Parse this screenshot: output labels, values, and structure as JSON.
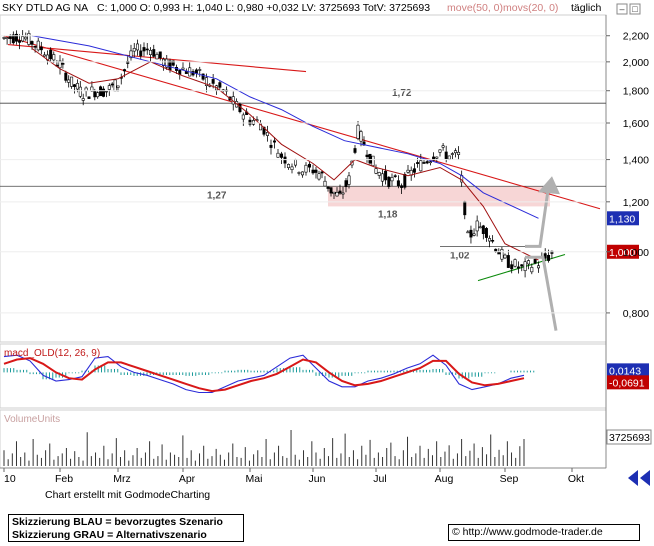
{
  "header": {
    "name": "SKY DTLD AG NA",
    "quote": "C: 1,000  O: 0,993  H: 1,040  L: 0,980  +0,032  LV: 3725693  TotV: 3725693",
    "ma50": "move(50, 0)",
    "ma20": "movs(20, 0)",
    "period": "täglich"
  },
  "colors": {
    "ma50": "#2b2bd8",
    "ma20": "#a01010",
    "resistance": "#d81818",
    "support": "#0b8a0b",
    "zone": "#f7d6d6",
    "scenario_arrow": "#b0b0b0",
    "candle": "#000000",
    "macd": "#2b2bd8",
    "signal": "#d81818",
    "hist": "#1a9a9a"
  },
  "chart_data": [
    {
      "type": "candlestick",
      "title": "SKY DTLD AG NA",
      "x_labels": [
        "10",
        "Feb",
        "Mrz",
        "Apr",
        "Mai",
        "Jun",
        "Jul",
        "Aug",
        "Sep",
        "Okt"
      ],
      "y_ticks": [
        "2,200",
        "2,000",
        "1,800",
        "1,600",
        "1,400",
        "1,200",
        "1,000",
        "0,800"
      ],
      "ylim": [
        0.73,
        2.33
      ],
      "y_scale": "log",
      "close_path": [
        [
          "10",
          2.18
        ],
        [
          "10",
          2.2
        ],
        [
          "10",
          2.1
        ],
        [
          "Feb",
          1.98
        ],
        [
          "Feb",
          1.85
        ],
        [
          "Feb",
          1.78
        ],
        [
          "Feb",
          1.8
        ],
        [
          "Feb",
          1.8
        ],
        [
          "Mrz",
          1.85
        ],
        [
          "Mrz",
          2.08
        ],
        [
          "Mrz",
          2.1
        ],
        [
          "Mrz",
          1.98
        ],
        [
          "Apr",
          1.95
        ],
        [
          "Apr",
          1.92
        ],
        [
          "Apr",
          1.85
        ],
        [
          "Apr",
          1.8
        ],
        [
          "Apr",
          1.7
        ],
        [
          "Mai",
          1.62
        ],
        [
          "Mai",
          1.6
        ],
        [
          "Mai",
          1.5
        ],
        [
          "Mai",
          1.42
        ],
        [
          "Mai",
          1.38
        ],
        [
          "Mai",
          1.35
        ],
        [
          "Jun",
          1.35
        ],
        [
          "Jun",
          1.32
        ],
        [
          "Jun",
          1.25
        ],
        [
          "Jun",
          1.22
        ],
        [
          "Jun",
          1.3
        ],
        [
          "Jun",
          1.55
        ],
        [
          "Jun",
          1.45
        ],
        [
          "Jul",
          1.35
        ],
        [
          "Jul",
          1.3
        ],
        [
          "Jul",
          1.28
        ],
        [
          "Jul",
          1.35
        ],
        [
          "Jul",
          1.4
        ],
        [
          "Aug",
          1.45
        ],
        [
          "Aug",
          1.42
        ],
        [
          "Aug",
          1.42
        ],
        [
          "Aug",
          1.05
        ],
        [
          "Aug",
          1.1
        ],
        [
          "Aug",
          1.08
        ],
        [
          "Aug",
          1.02
        ],
        [
          "Sep",
          0.97
        ],
        [
          "Sep",
          0.94
        ],
        [
          "Sep",
          0.96
        ],
        [
          "Sep",
          1.0
        ]
      ],
      "ma50_path": [
        [
          "10",
          2.2
        ],
        [
          "Feb",
          2.12
        ],
        [
          "Mrz",
          2.0
        ],
        [
          "Apr",
          1.88
        ],
        [
          "Mai",
          1.76
        ],
        [
          "Mai",
          1.68
        ],
        [
          "Jun",
          1.58
        ],
        [
          "Jun",
          1.5
        ],
        [
          "Jul",
          1.43
        ],
        [
          "Aug",
          1.38
        ],
        [
          "Aug",
          1.32
        ],
        [
          "Aug",
          1.24
        ],
        [
          "Sep",
          1.13
        ]
      ],
      "ma20_path": [
        [
          "10",
          2.1
        ],
        [
          "Feb",
          1.95
        ],
        [
          "Feb",
          1.85
        ],
        [
          "Mrz",
          1.88
        ],
        [
          "Mrz",
          2.0
        ],
        [
          "Apr",
          1.9
        ],
        [
          "Apr",
          1.82
        ],
        [
          "Mai",
          1.65
        ],
        [
          "Mai",
          1.48
        ],
        [
          "Jun",
          1.38
        ],
        [
          "Jun",
          1.3
        ],
        [
          "Jun",
          1.4
        ],
        [
          "Jul",
          1.36
        ],
        [
          "Jul",
          1.32
        ],
        [
          "Aug",
          1.36
        ],
        [
          "Aug",
          1.3
        ],
        [
          "Aug",
          1.18
        ],
        [
          "Sep",
          1.03
        ],
        [
          "Sep",
          0.97
        ]
      ],
      "resistance_line": [
        [
          "10",
          2.2
        ],
        [
          "Okt",
          1.17
        ]
      ],
      "resistance_short": [
        [
          "Feb",
          2.13
        ],
        [
          "Mai",
          1.93
        ]
      ],
      "support_line": [
        [
          "Aug",
          0.9
        ],
        [
          "Sep",
          0.99
        ]
      ],
      "levels": [
        {
          "label": "1,72",
          "value": 1.72
        },
        {
          "label": "1,27",
          "value": 1.27
        },
        {
          "label": "1,18",
          "value": 1.18
        },
        {
          "label": "1,02",
          "value": 1.02
        }
      ],
      "zone": [
        1.18,
        1.27
      ],
      "scenario_blue": [
        [
          1.02,
          1.27
        ]
      ],
      "scenario_grey": [
        [
          0.98,
          0.75
        ]
      ],
      "price_tags": [
        {
          "label": "1,130",
          "value": 1.13,
          "color": "#1d2fb3"
        },
        {
          "label": "1,000",
          "value": 1.0,
          "color": "#c00000"
        }
      ]
    },
    {
      "type": "line",
      "title": "macd_OLD(12, 26, 9)",
      "series": [
        {
          "name": "macd",
          "values": [
            0.11,
            0.12,
            0.08,
            -0.02,
            -0.06,
            -0.05,
            -0.03,
            0.1,
            0.11,
            0.04,
            0.0,
            -0.02,
            -0.05,
            -0.08,
            -0.12,
            -0.14,
            -0.14,
            -0.1,
            -0.06,
            -0.04,
            -0.02,
            0.04,
            0.1,
            0.12,
            0.03,
            -0.06,
            -0.1,
            -0.1,
            -0.06,
            -0.04,
            -0.01,
            0.03,
            0.06,
            0.12,
            0.05,
            -0.08,
            -0.12,
            -0.1,
            -0.08,
            -0.04,
            -0.02
          ]
        },
        {
          "name": "signal",
          "values": [
            0.06,
            0.09,
            0.1,
            0.06,
            0.0,
            -0.04,
            -0.05,
            0.02,
            0.07,
            0.07,
            0.04,
            0.01,
            -0.02,
            -0.05,
            -0.08,
            -0.11,
            -0.13,
            -0.12,
            -0.09,
            -0.06,
            -0.04,
            -0.01,
            0.04,
            0.09,
            0.07,
            0.0,
            -0.06,
            -0.09,
            -0.08,
            -0.06,
            -0.03,
            0.0,
            0.03,
            0.08,
            0.08,
            -0.01,
            -0.07,
            -0.09,
            -0.08,
            -0.06,
            -0.04
          ]
        }
      ],
      "price_tags": [
        {
          "label": "0,0143",
          "value": 0.0143,
          "color": "#1d2fb3"
        },
        {
          "label": "-0,0691",
          "value": -0.0691,
          "color": "#c00000"
        }
      ],
      "ylim": [
        -0.22,
        0.17
      ]
    },
    {
      "type": "bar",
      "title": "VolumeUnits",
      "values": [
        0.35,
        0.15,
        0.28,
        0.55,
        0.2,
        0.3,
        0.12,
        0.6,
        0.25,
        0.18,
        0.35,
        0.5,
        0.14,
        0.22,
        0.28,
        0.4,
        0.16,
        0.33,
        0.2,
        0.12,
        0.75,
        0.22,
        0.3,
        0.18,
        0.45,
        0.15,
        0.28,
        0.62,
        0.2,
        0.35,
        0.12,
        0.24,
        0.4,
        0.18,
        0.3,
        0.55,
        0.16,
        0.22,
        0.48,
        0.14,
        0.3,
        0.25,
        0.2,
        0.68,
        0.18,
        0.35,
        0.12,
        0.28,
        0.45,
        0.16,
        0.22,
        0.38,
        0.25,
        0.14,
        0.3,
        0.5,
        0.2,
        0.18,
        0.42,
        0.12,
        0.26,
        0.35,
        0.2,
        0.6,
        0.15,
        0.3,
        0.45,
        0.22,
        0.18,
        0.8,
        0.25,
        0.14,
        0.35,
        0.2,
        0.55,
        0.3,
        0.16,
        0.4,
        0.22,
        0.62,
        0.18,
        0.28,
        0.72,
        0.2,
        0.35,
        0.15,
        0.45,
        0.25,
        0.58,
        0.18,
        0.3,
        0.2,
        0.4,
        0.52,
        0.22,
        0.15,
        0.35,
        0.65,
        0.2,
        0.28,
        0.45,
        0.18,
        0.38,
        0.24,
        0.55,
        0.2,
        0.32,
        0.46,
        0.16,
        0.28,
        0.6,
        0.22,
        0.34,
        0.5,
        0.18,
        0.42,
        0.26,
        0.7,
        0.2,
        0.36,
        0.24,
        0.55,
        0.3,
        0.18,
        0.44,
        0.6
      ],
      "price_tags": [
        {
          "label": "3725693",
          "value": 3725693,
          "color": "#ffffff"
        }
      ]
    }
  ],
  "footer": {
    "credit": "Chart erstellt mit GodmodeCharting",
    "legend_line1": "Skizzierung BLAU = bevorzugtes Szenario",
    "legend_line2": "Skizzierung GRAU = Alternativszenario",
    "url": "© http://www.godmode-trader.de"
  }
}
